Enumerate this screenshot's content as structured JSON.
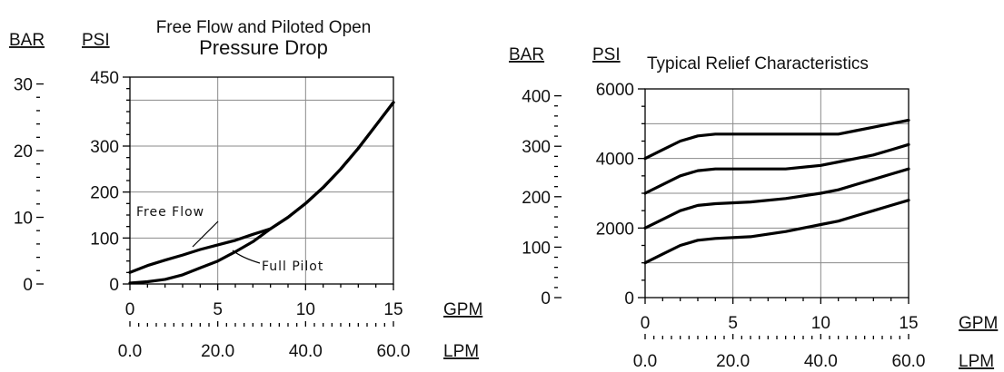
{
  "chart_data": [
    {
      "type": "line",
      "title": "Free Flow and Piloted Open",
      "subtitle": "Pressure Drop",
      "x_unit": "GPM",
      "x2_unit": "LPM",
      "y_unit": "PSI",
      "y2_unit": "BAR",
      "xlim": [
        0,
        15
      ],
      "ylim": [
        0,
        450
      ],
      "x2lim": [
        0,
        60
      ],
      "y2lim": [
        0,
        31
      ],
      "x_ticks": [
        "0",
        "5",
        "10",
        "15"
      ],
      "x2_ticks": [
        "0.0",
        "20.0",
        "40.0",
        "60.0"
      ],
      "y_ticks": [
        "0",
        "100",
        "200",
        "300",
        "450"
      ],
      "y2_ticks": [
        "0",
        "10",
        "20",
        "30"
      ],
      "grid": true,
      "series": [
        {
          "name": "Free Flow",
          "x": [
            0,
            1,
            2,
            3,
            4,
            5,
            6,
            7,
            8,
            9,
            10,
            11,
            12,
            13,
            14,
            15
          ],
          "y": [
            25,
            40,
            52,
            63,
            75,
            85,
            95,
            108,
            120,
            145,
            175,
            210,
            250,
            295,
            345,
            395
          ]
        },
        {
          "name": "Full Pilot",
          "x": [
            0,
            1,
            2,
            3,
            4,
            5,
            6,
            7,
            8,
            9,
            10,
            11,
            12,
            13,
            14,
            15
          ],
          "y": [
            2,
            5,
            10,
            20,
            35,
            50,
            70,
            92,
            120,
            145,
            175,
            210,
            250,
            295,
            345,
            395
          ]
        }
      ],
      "annotations": [
        "Free Flow",
        "Full Pilot"
      ]
    },
    {
      "type": "line",
      "title": "Typical Relief Characteristics",
      "x_unit": "GPM",
      "x2_unit": "LPM",
      "y_unit": "PSI",
      "y2_unit": "BAR",
      "xlim": [
        0,
        15
      ],
      "ylim": [
        0,
        6000
      ],
      "x2lim": [
        0,
        60
      ],
      "y2lim": [
        0,
        414
      ],
      "x_ticks": [
        "0",
        "5",
        "10",
        "15"
      ],
      "x2_ticks": [
        "0.0",
        "20.0",
        "40.0",
        "60.0"
      ],
      "y_ticks": [
        "0",
        "2000",
        "4000",
        "6000"
      ],
      "y2_ticks": [
        "0",
        "100",
        "200",
        "300",
        "400"
      ],
      "grid": true,
      "series": [
        {
          "x": [
            0,
            1,
            2,
            3,
            4,
            6,
            8,
            10,
            11,
            12,
            13,
            14,
            15
          ],
          "y": [
            1000,
            1250,
            1500,
            1650,
            1700,
            1750,
            1900,
            2100,
            2200,
            2350,
            2500,
            2650,
            2800
          ]
        },
        {
          "x": [
            0,
            1,
            2,
            3,
            4,
            6,
            8,
            10,
            11,
            12,
            13,
            14,
            15
          ],
          "y": [
            2000,
            2250,
            2500,
            2650,
            2700,
            2750,
            2850,
            3000,
            3100,
            3250,
            3400,
            3550,
            3700
          ]
        },
        {
          "x": [
            0,
            1,
            2,
            3,
            4,
            6,
            8,
            10,
            11,
            12,
            13,
            14,
            15
          ],
          "y": [
            3000,
            3250,
            3500,
            3650,
            3700,
            3700,
            3700,
            3800,
            3900,
            4000,
            4100,
            4250,
            4400
          ]
        },
        {
          "x": [
            0,
            1,
            2,
            3,
            4,
            6,
            8,
            10,
            11,
            12,
            13,
            14,
            15
          ],
          "y": [
            4000,
            4250,
            4500,
            4650,
            4700,
            4700,
            4700,
            4700,
            4700,
            4800,
            4900,
            5000,
            5100
          ]
        }
      ]
    }
  ]
}
